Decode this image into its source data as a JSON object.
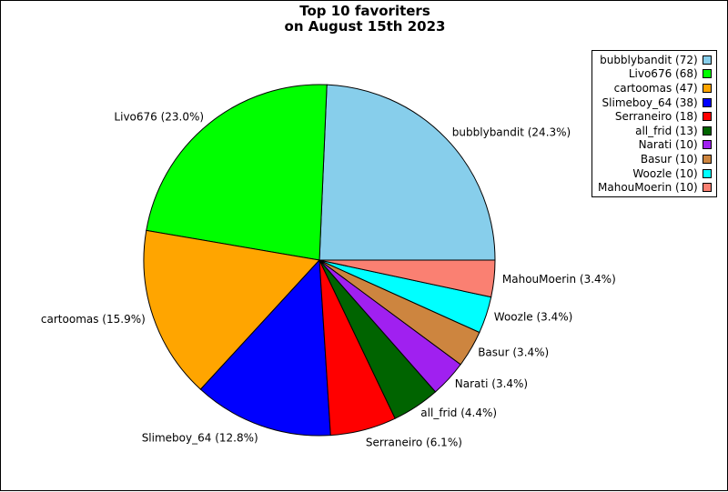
{
  "chart_data": {
    "type": "pie",
    "title": [
      "Top 10 favoriters",
      "on August 15th 2023"
    ],
    "slices": [
      {
        "name": "bubblybandit",
        "value": 72,
        "percent_label": "24.3%",
        "color": "#87ceeb"
      },
      {
        "name": "Livo676",
        "value": 68,
        "percent_label": "23.0%",
        "color": "#00ff00"
      },
      {
        "name": "cartoomas",
        "value": 47,
        "percent_label": "15.9%",
        "color": "#ffa500"
      },
      {
        "name": "Slimeboy_64",
        "value": 38,
        "percent_label": "12.8%",
        "color": "#0000ff"
      },
      {
        "name": "Serraneiro",
        "value": 18,
        "percent_label": "6.1%",
        "color": "#ff0000"
      },
      {
        "name": "all_frid",
        "value": 13,
        "percent_label": "4.4%",
        "color": "#006400"
      },
      {
        "name": "Narati",
        "value": 10,
        "percent_label": "3.4%",
        "color": "#a020f0"
      },
      {
        "name": "Basur",
        "value": 10,
        "percent_label": "3.4%",
        "color": "#cd853f"
      },
      {
        "name": "Woozle",
        "value": 10,
        "percent_label": "3.4%",
        "color": "#00ffff"
      },
      {
        "name": "MahouMoerin",
        "value": 10,
        "percent_label": "3.4%",
        "color": "#fa8072"
      }
    ],
    "legend_position": "top-right",
    "start_angle_deg": 0,
    "direction": "counterclockwise"
  }
}
